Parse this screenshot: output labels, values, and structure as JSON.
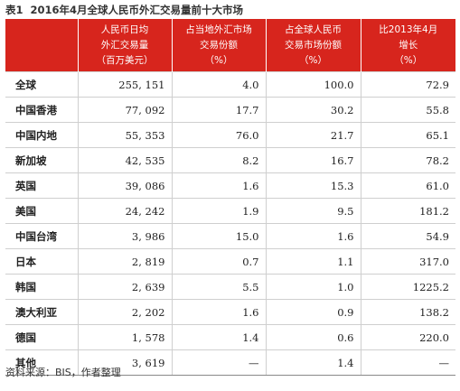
{
  "caption": {
    "number": "表1",
    "title": "2016年4月全球人民币外汇交易量前十大市场"
  },
  "columns": [
    {
      "lines": [
        ""
      ]
    },
    {
      "lines": [
        "人民币日均",
        "外汇交易量",
        "（百万美元）"
      ]
    },
    {
      "lines": [
        "占当地外汇市场",
        "交易份额",
        "（%）"
      ]
    },
    {
      "lines": [
        "占全球人民币",
        "交易市场份额",
        "（%）"
      ]
    },
    {
      "lines": [
        "比2013年4月",
        "增长",
        "（%）"
      ]
    }
  ],
  "rows": [
    {
      "region": "全球",
      "volume": "255, 151",
      "local_share": "4.0",
      "global_share": "100.0",
      "growth": "72.9"
    },
    {
      "region": "中国香港",
      "volume": "77, 092",
      "local_share": "17.7",
      "global_share": "30.2",
      "growth": "55.8"
    },
    {
      "region": "中国内地",
      "volume": "55, 353",
      "local_share": "76.0",
      "global_share": "21.7",
      "growth": "65.1"
    },
    {
      "region": "新加坡",
      "volume": "42, 535",
      "local_share": "8.2",
      "global_share": "16.7",
      "growth": "78.2"
    },
    {
      "region": "英国",
      "volume": "39, 086",
      "local_share": "1.6",
      "global_share": "15.3",
      "growth": "61.0"
    },
    {
      "region": "美国",
      "volume": "24, 242",
      "local_share": "1.9",
      "global_share": "9.5",
      "growth": "181.2"
    },
    {
      "region": "中国台湾",
      "volume": "3, 986",
      "local_share": "15.0",
      "global_share": "1.6",
      "growth": "54.9"
    },
    {
      "region": "日本",
      "volume": "2, 819",
      "local_share": "0.7",
      "global_share": "1.1",
      "growth": "317.0"
    },
    {
      "region": "韩国",
      "volume": "2, 639",
      "local_share": "5.5",
      "global_share": "1.0",
      "growth": "1225.2"
    },
    {
      "region": "澳大利亚",
      "volume": "2, 202",
      "local_share": "1.6",
      "global_share": "0.9",
      "growth": "138.2"
    },
    {
      "region": "德国",
      "volume": "1, 578",
      "local_share": "1.4",
      "global_share": "0.6",
      "growth": "220.0"
    },
    {
      "region": "其他",
      "volume": "3, 619",
      "local_share": "—",
      "global_share": "1.4",
      "growth": "—"
    }
  ],
  "source": "资料来源：BIS，作者整理",
  "colors": {
    "header_bg": "#d7251d",
    "header_text": "#ffffff",
    "rule": "#cfcfcf"
  }
}
